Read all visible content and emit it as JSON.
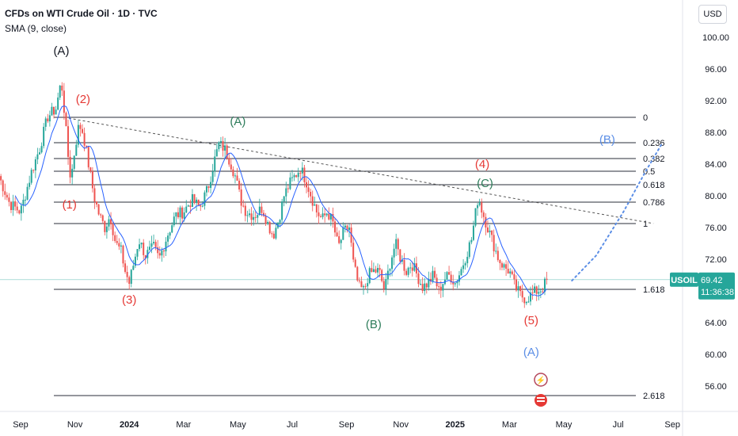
{
  "header": {
    "title": "CFDs on WTI Crude Oil · 1D · TVC",
    "subtitle": "SMA (9, close)",
    "currency_button": "USD"
  },
  "price_tag": {
    "symbol": "USOIL",
    "price": "69.42",
    "countdown": "11:36:38",
    "value": 69.42
  },
  "colors": {
    "up": "#26a69a",
    "down": "#ef5350",
    "sma": "#2962ff",
    "red_label": "#e53935",
    "green_label": "#2e7d5b",
    "blue_label": "#5b8ee6",
    "price_tag_bg": "#26a69a"
  },
  "chart_data": {
    "type": "candlestick",
    "y_axis": {
      "range": [
        52.5,
        104.5
      ],
      "ticks": [
        "100.00",
        "96.00",
        "92.00",
        "88.00",
        "84.00",
        "80.00",
        "76.00",
        "72.00",
        "68.00",
        "64.00",
        "60.00",
        "56.00"
      ],
      "tick_values": [
        100,
        96,
        92,
        88,
        84,
        80,
        76,
        72,
        68,
        64,
        60,
        56
      ]
    },
    "x_axis": {
      "ticks": [
        "Sep",
        "Nov",
        "2024",
        "Mar",
        "May",
        "Jul",
        "Sep",
        "Nov",
        "2025",
        "Mar",
        "May",
        "Jul",
        "Sep"
      ],
      "tick_months": [
        0,
        2,
        4,
        6,
        8,
        10,
        12,
        14,
        16,
        18,
        20,
        22,
        24
      ],
      "bold": [
        "2024",
        "2025"
      ]
    },
    "fib_levels": [
      {
        "label": "0",
        "price": 89.9
      },
      {
        "label": "0.236",
        "price": 86.7
      },
      {
        "label": "0.382",
        "price": 84.7
      },
      {
        "label": "0.5",
        "price": 83.1
      },
      {
        "label": "0.618",
        "price": 81.4
      },
      {
        "label": "0.786",
        "price": 79.2
      },
      {
        "label": "1",
        "price": 76.5
      },
      {
        "label": "1.618",
        "price": 68.2
      },
      {
        "label": "2.618",
        "price": 54.8
      }
    ],
    "trendline": {
      "start": [
        1.6,
        89.9
      ],
      "end": [
        23.3,
        76.5
      ]
    },
    "projection": [
      [
        20.3,
        69.3
      ],
      [
        21.2,
        72.5
      ],
      [
        22.2,
        78.0
      ],
      [
        23.0,
        83.0
      ],
      [
        23.6,
        86.5
      ]
    ],
    "wave_labels": [
      {
        "text": "(A)",
        "month": 1.5,
        "price": 97.8,
        "color": "black"
      },
      {
        "text": "(2)",
        "month": 2.3,
        "price": 91.7,
        "color": "red"
      },
      {
        "text": "(1)",
        "month": 1.8,
        "price": 78.4,
        "color": "red"
      },
      {
        "text": "(3)",
        "month": 4.0,
        "price": 66.4,
        "color": "red"
      },
      {
        "text": "(A)",
        "month": 8.0,
        "price": 88.9,
        "color": "green"
      },
      {
        "text": "(B)",
        "month": 13.0,
        "price": 63.3,
        "color": "green"
      },
      {
        "text": "(4)",
        "month": 17.0,
        "price": 83.5,
        "color": "red"
      },
      {
        "text": "(C)",
        "month": 17.1,
        "price": 81.1,
        "color": "green"
      },
      {
        "text": "(5)",
        "month": 18.8,
        "price": 63.8,
        "color": "red"
      },
      {
        "text": "(A)",
        "month": 18.8,
        "price": 59.8,
        "color": "blue"
      },
      {
        "text": "(B)",
        "month": 21.6,
        "price": 86.6,
        "color": "blue"
      }
    ],
    "series_anchors": [
      [
        -0.8,
        82.5
      ],
      [
        -0.4,
        79.0
      ],
      [
        0.0,
        78.0
      ],
      [
        0.4,
        83.0
      ],
      [
        0.7,
        86.0
      ],
      [
        1.0,
        90.0
      ],
      [
        1.3,
        91.0
      ],
      [
        1.5,
        94.5
      ],
      [
        1.6,
        91.0
      ],
      [
        1.75,
        85.0
      ],
      [
        1.85,
        82.0
      ],
      [
        2.0,
        86.0
      ],
      [
        2.15,
        89.0
      ],
      [
        2.3,
        88.0
      ],
      [
        2.5,
        84.0
      ],
      [
        2.7,
        80.0
      ],
      [
        2.9,
        77.5
      ],
      [
        3.1,
        76.0
      ],
      [
        3.3,
        77.5
      ],
      [
        3.5,
        74.0
      ],
      [
        3.7,
        73.0
      ],
      [
        3.85,
        70.5
      ],
      [
        4.0,
        69.0
      ],
      [
        4.2,
        72.0
      ],
      [
        4.35,
        74.5
      ],
      [
        4.6,
        72.5
      ],
      [
        4.9,
        73.5
      ],
      [
        5.1,
        72.0
      ],
      [
        5.4,
        75.0
      ],
      [
        5.7,
        77.5
      ],
      [
        6.0,
        78.0
      ],
      [
        6.3,
        79.5
      ],
      [
        6.6,
        78.5
      ],
      [
        6.9,
        81.0
      ],
      [
        7.1,
        84.0
      ],
      [
        7.3,
        86.5
      ],
      [
        7.5,
        86.0
      ],
      [
        7.7,
        84.5
      ],
      [
        7.9,
        82.5
      ],
      [
        8.1,
        79.5
      ],
      [
        8.3,
        78.0
      ],
      [
        8.6,
        77.5
      ],
      [
        8.9,
        78.5
      ],
      [
        9.1,
        76.5
      ],
      [
        9.3,
        75.0
      ],
      [
        9.5,
        77.0
      ],
      [
        9.7,
        80.0
      ],
      [
        9.9,
        81.5
      ],
      [
        10.1,
        82.5
      ],
      [
        10.3,
        83.5
      ],
      [
        10.5,
        82.0
      ],
      [
        10.7,
        80.0
      ],
      [
        10.9,
        78.0
      ],
      [
        11.1,
        77.0
      ],
      [
        11.3,
        78.0
      ],
      [
        11.5,
        76.5
      ],
      [
        11.7,
        73.5
      ],
      [
        11.9,
        75.5
      ],
      [
        12.1,
        76.0
      ],
      [
        12.25,
        71.5
      ],
      [
        12.45,
        68.5
      ],
      [
        12.65,
        68.0
      ],
      [
        12.8,
        70.0
      ],
      [
        13.0,
        70.5
      ],
      [
        13.2,
        70.5
      ],
      [
        13.4,
        68.0
      ],
      [
        13.6,
        71.5
      ],
      [
        13.8,
        74.0
      ],
      [
        14.0,
        72.0
      ],
      [
        14.2,
        70.5
      ],
      [
        14.4,
        71.5
      ],
      [
        14.6,
        70.0
      ],
      [
        14.8,
        68.5
      ],
      [
        15.0,
        69.0
      ],
      [
        15.2,
        70.0
      ],
      [
        15.4,
        68.0
      ],
      [
        15.6,
        69.5
      ],
      [
        15.8,
        70.0
      ],
      [
        16.0,
        69.0
      ],
      [
        16.2,
        70.5
      ],
      [
        16.4,
        72.5
      ],
      [
        16.6,
        74.5
      ],
      [
        16.85,
        80.0
      ],
      [
        17.0,
        78.0
      ],
      [
        17.2,
        76.0
      ],
      [
        17.4,
        74.0
      ],
      [
        17.6,
        72.0
      ],
      [
        17.8,
        71.0
      ],
      [
        18.0,
        70.5
      ],
      [
        18.2,
        68.5
      ],
      [
        18.4,
        67.5
      ],
      [
        18.6,
        67.0
      ],
      [
        18.8,
        67.5
      ],
      [
        19.0,
        68.0
      ],
      [
        19.2,
        68.3
      ],
      [
        19.4,
        69.42
      ]
    ]
  }
}
